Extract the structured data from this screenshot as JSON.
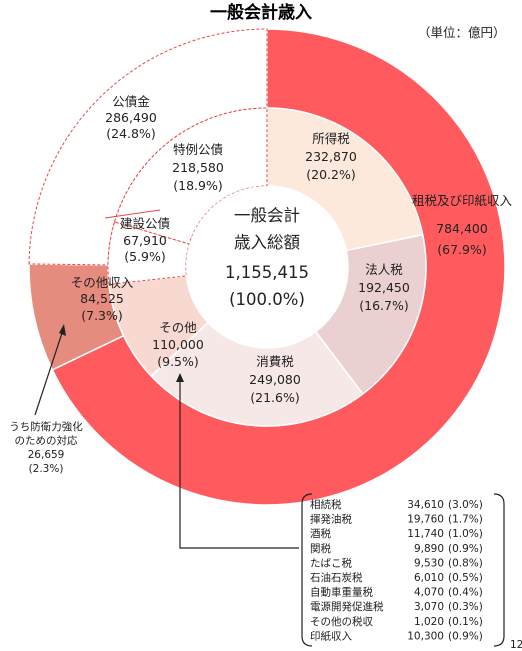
{
  "page": {
    "title": "一般会計歳入",
    "unit": "（単位：億円）",
    "page_number": "12"
  },
  "chart_data": {
    "type": "pie",
    "title": "一般会計歳入",
    "center": {
      "line1": "一般会計",
      "line2": "歳入総額",
      "value": "1,155,415",
      "pct": "(100.0%)"
    },
    "outer": [
      {
        "name": "租税及び印紙収入",
        "value": 784400,
        "value_label": "784,400",
        "pct": "(67.9%)",
        "color": "#ff5b5e"
      },
      {
        "name": "その他収入",
        "value": 84525,
        "value_label": "84,525",
        "pct": "(7.3%)",
        "color": "#e58c7f"
      },
      {
        "name": "公債金",
        "value": 286490,
        "value_label": "286,490",
        "pct": "(24.8%)",
        "color": "#ffffff"
      }
    ],
    "inner": [
      {
        "name": "所得税",
        "value": 232870,
        "value_label": "232,870",
        "pct": "(20.2%)",
        "color": "#fde9dc"
      },
      {
        "name": "法人税",
        "value": 192450,
        "value_label": "192,450",
        "pct": "(16.7%)",
        "color": "#ead0d1"
      },
      {
        "name": "消費税",
        "value": 249080,
        "value_label": "249,080",
        "pct": "(21.6%)",
        "color": "#f7e8e8"
      },
      {
        "name": "その他",
        "value": 110000,
        "value_label": "110,000",
        "pct": "(9.5%)",
        "color": "#f7d9d1"
      },
      {
        "name": "建設公債",
        "value": 67910,
        "value_label": "67,910",
        "pct": "(5.9%)",
        "color": "#ffffff"
      },
      {
        "name": "特例公債",
        "value": 218580,
        "value_label": "218,580",
        "pct": "(18.9%)",
        "color": "#ffffff"
      }
    ],
    "annotation": {
      "line1": "うち防衛力強化",
      "line2": "のための対応",
      "value": "26,659",
      "pct": "(2.3%)"
    },
    "other_taxes": [
      {
        "name": "相続税",
        "value": "34,610",
        "pct": "(3.0%)"
      },
      {
        "name": "揮発油税",
        "value": "19,760",
        "pct": "(1.7%)"
      },
      {
        "name": "酒税",
        "value": "11,740",
        "pct": "(1.0%)"
      },
      {
        "name": "関税",
        "value": "9,890",
        "pct": "(0.9%)"
      },
      {
        "name": "たばこ税",
        "value": "9,530",
        "pct": "(0.8%)"
      },
      {
        "name": "石油石炭税",
        "value": "6,010",
        "pct": "(0.5%)"
      },
      {
        "name": "自動車重量税",
        "value": "4,070",
        "pct": "(0.4%)"
      },
      {
        "name": "電源開発促進税",
        "value": "3,070",
        "pct": "(0.3%)"
      },
      {
        "name": "その他の税収",
        "value": "1,020",
        "pct": "(0.1%)"
      },
      {
        "name": "印紙収入",
        "value": "10,300",
        "pct": "(0.9%)"
      }
    ]
  }
}
